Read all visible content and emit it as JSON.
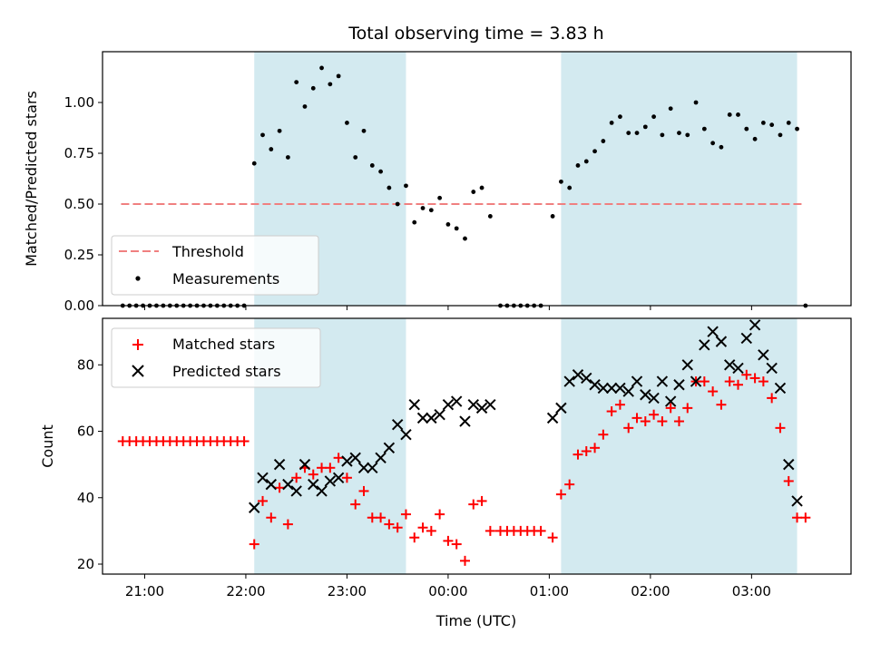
{
  "title": "Total observing time = 3.83 h",
  "colors": {
    "shade": "#a8d5e2",
    "threshold": "#f08080",
    "measurement": "#000000",
    "matched": "#ff0000",
    "predicted": "#000000"
  },
  "chart_data": [
    {
      "type": "scatter",
      "ylabel": "Matched/Predicted stars",
      "xlim": [
        "20:35",
        "03:59"
      ],
      "ylim": [
        0,
        1.25
      ],
      "yticks": [
        "0.00",
        "0.25",
        "0.50",
        "0.75",
        "1.00"
      ],
      "yticks_values": [
        0,
        0.25,
        0.5,
        0.75,
        1.0
      ],
      "shaded_intervals": [
        [
          "22:05",
          "23:35"
        ],
        [
          "01:07",
          "03:27"
        ]
      ],
      "legend_position": "lower-left",
      "legend": [
        "Threshold",
        "Measurements"
      ],
      "threshold": {
        "name": "Threshold",
        "value": 0.5,
        "x_range": [
          "20:46",
          "03:31"
        ]
      },
      "series": [
        {
          "name": "Measurements",
          "marker": "dot",
          "points": [
            [
              "20:47",
              0
            ],
            [
              "20:51",
              0
            ],
            [
              "20:55",
              0
            ],
            [
              "20:59",
              0
            ],
            [
              "21:03",
              0
            ],
            [
              "21:07",
              0
            ],
            [
              "21:11",
              0
            ],
            [
              "21:15",
              0
            ],
            [
              "21:19",
              0
            ],
            [
              "21:23",
              0
            ],
            [
              "21:27",
              0
            ],
            [
              "21:31",
              0
            ],
            [
              "21:35",
              0
            ],
            [
              "21:39",
              0
            ],
            [
              "21:43",
              0
            ],
            [
              "21:47",
              0
            ],
            [
              "21:51",
              0
            ],
            [
              "21:55",
              0
            ],
            [
              "21:59",
              0
            ],
            [
              "22:05",
              0.7
            ],
            [
              "22:10",
              0.84
            ],
            [
              "22:15",
              0.77
            ],
            [
              "22:20",
              0.86
            ],
            [
              "22:25",
              0.73
            ],
            [
              "22:30",
              1.1
            ],
            [
              "22:35",
              0.98
            ],
            [
              "22:40",
              1.07
            ],
            [
              "22:45",
              1.17
            ],
            [
              "22:50",
              1.09
            ],
            [
              "22:55",
              1.13
            ],
            [
              "23:00",
              0.9
            ],
            [
              "23:05",
              0.73
            ],
            [
              "23:10",
              0.86
            ],
            [
              "23:15",
              0.69
            ],
            [
              "23:20",
              0.66
            ],
            [
              "23:25",
              0.58
            ],
            [
              "23:30",
              0.5
            ],
            [
              "23:35",
              0.59
            ],
            [
              "23:40",
              0.41
            ],
            [
              "23:45",
              0.48
            ],
            [
              "23:50",
              0.47
            ],
            [
              "23:55",
              0.53
            ],
            [
              "00:00",
              0.4
            ],
            [
              "00:05",
              0.38
            ],
            [
              "00:10",
              0.33
            ],
            [
              "00:15",
              0.56
            ],
            [
              "00:20",
              0.58
            ],
            [
              "00:25",
              0.44
            ],
            [
              "00:31",
              0
            ],
            [
              "00:35",
              0
            ],
            [
              "00:39",
              0
            ],
            [
              "00:43",
              0
            ],
            [
              "00:47",
              0
            ],
            [
              "00:51",
              0
            ],
            [
              "00:55",
              0
            ],
            [
              "01:02",
              0.44
            ],
            [
              "01:07",
              0.61
            ],
            [
              "01:12",
              0.58
            ],
            [
              "01:17",
              0.69
            ],
            [
              "01:22",
              0.71
            ],
            [
              "01:27",
              0.76
            ],
            [
              "01:32",
              0.81
            ],
            [
              "01:37",
              0.9
            ],
            [
              "01:42",
              0.93
            ],
            [
              "01:47",
              0.85
            ],
            [
              "01:52",
              0.85
            ],
            [
              "01:57",
              0.88
            ],
            [
              "02:02",
              0.93
            ],
            [
              "02:07",
              0.84
            ],
            [
              "02:12",
              0.97
            ],
            [
              "02:17",
              0.85
            ],
            [
              "02:22",
              0.84
            ],
            [
              "02:27",
              1.0
            ],
            [
              "02:32",
              0.87
            ],
            [
              "02:37",
              0.8
            ],
            [
              "02:42",
              0.78
            ],
            [
              "02:47",
              0.94
            ],
            [
              "02:52",
              0.94
            ],
            [
              "02:57",
              0.87
            ],
            [
              "03:02",
              0.82
            ],
            [
              "03:07",
              0.9
            ],
            [
              "03:12",
              0.89
            ],
            [
              "03:17",
              0.84
            ],
            [
              "03:22",
              0.9
            ],
            [
              "03:27",
              0.87
            ],
            [
              "03:32",
              0
            ]
          ]
        }
      ]
    },
    {
      "type": "scatter",
      "xlabel": "Time (UTC)",
      "ylabel": "Count",
      "xlim": [
        "20:35",
        "03:59"
      ],
      "ylim": [
        17,
        94
      ],
      "xticks": [
        "21:00",
        "22:00",
        "23:00",
        "00:00",
        "01:00",
        "02:00",
        "03:00"
      ],
      "yticks": [
        "20",
        "40",
        "60",
        "80"
      ],
      "yticks_values": [
        20,
        40,
        60,
        80
      ],
      "shaded_intervals": [
        [
          "22:05",
          "23:35"
        ],
        [
          "01:07",
          "03:27"
        ]
      ],
      "legend_position": "upper-left",
      "legend": [
        "Matched stars",
        "Predicted stars"
      ],
      "series": [
        {
          "name": "Matched stars",
          "marker": "plus",
          "points": [
            [
              "20:47",
              57
            ],
            [
              "20:51",
              57
            ],
            [
              "20:55",
              57
            ],
            [
              "20:59",
              57
            ],
            [
              "21:03",
              57
            ],
            [
              "21:07",
              57
            ],
            [
              "21:11",
              57
            ],
            [
              "21:15",
              57
            ],
            [
              "21:19",
              57
            ],
            [
              "21:23",
              57
            ],
            [
              "21:27",
              57
            ],
            [
              "21:31",
              57
            ],
            [
              "21:35",
              57
            ],
            [
              "21:39",
              57
            ],
            [
              "21:43",
              57
            ],
            [
              "21:47",
              57
            ],
            [
              "21:51",
              57
            ],
            [
              "21:55",
              57
            ],
            [
              "21:59",
              57
            ],
            [
              "22:05",
              26
            ],
            [
              "22:10",
              39
            ],
            [
              "22:15",
              34
            ],
            [
              "22:20",
              43
            ],
            [
              "22:25",
              32
            ],
            [
              "22:30",
              46
            ],
            [
              "22:35",
              49
            ],
            [
              "22:40",
              47
            ],
            [
              "22:45",
              49
            ],
            [
              "22:50",
              49
            ],
            [
              "22:55",
              52
            ],
            [
              "23:00",
              46
            ],
            [
              "23:05",
              38
            ],
            [
              "23:10",
              42
            ],
            [
              "23:15",
              34
            ],
            [
              "23:20",
              34
            ],
            [
              "23:25",
              32
            ],
            [
              "23:30",
              31
            ],
            [
              "23:35",
              35
            ],
            [
              "23:40",
              28
            ],
            [
              "23:45",
              31
            ],
            [
              "23:50",
              30
            ],
            [
              "23:55",
              35
            ],
            [
              "00:00",
              27
            ],
            [
              "00:05",
              26
            ],
            [
              "00:10",
              21
            ],
            [
              "00:15",
              38
            ],
            [
              "00:20",
              39
            ],
            [
              "00:25",
              30
            ],
            [
              "00:31",
              30
            ],
            [
              "00:35",
              30
            ],
            [
              "00:39",
              30
            ],
            [
              "00:43",
              30
            ],
            [
              "00:47",
              30
            ],
            [
              "00:51",
              30
            ],
            [
              "00:55",
              30
            ],
            [
              "01:02",
              28
            ],
            [
              "01:07",
              41
            ],
            [
              "01:12",
              44
            ],
            [
              "01:17",
              53
            ],
            [
              "01:22",
              54
            ],
            [
              "01:27",
              55
            ],
            [
              "01:32",
              59
            ],
            [
              "01:37",
              66
            ],
            [
              "01:42",
              68
            ],
            [
              "01:47",
              61
            ],
            [
              "01:52",
              64
            ],
            [
              "01:57",
              63
            ],
            [
              "02:02",
              65
            ],
            [
              "02:07",
              63
            ],
            [
              "02:12",
              67
            ],
            [
              "02:17",
              63
            ],
            [
              "02:22",
              67
            ],
            [
              "02:27",
              75
            ],
            [
              "02:32",
              75
            ],
            [
              "02:37",
              72
            ],
            [
              "02:42",
              68
            ],
            [
              "02:47",
              75
            ],
            [
              "02:52",
              74
            ],
            [
              "02:57",
              77
            ],
            [
              "03:02",
              76
            ],
            [
              "03:07",
              75
            ],
            [
              "03:12",
              70
            ],
            [
              "03:17",
              61
            ],
            [
              "03:22",
              45
            ],
            [
              "03:27",
              34
            ],
            [
              "03:32",
              34
            ]
          ]
        },
        {
          "name": "Predicted stars",
          "marker": "x",
          "points": [
            [
              "22:05",
              37
            ],
            [
              "22:10",
              46
            ],
            [
              "22:15",
              44
            ],
            [
              "22:20",
              50
            ],
            [
              "22:25",
              44
            ],
            [
              "22:30",
              42
            ],
            [
              "22:35",
              50
            ],
            [
              "22:40",
              44
            ],
            [
              "22:45",
              42
            ],
            [
              "22:50",
              45
            ],
            [
              "22:55",
              46
            ],
            [
              "23:00",
              51
            ],
            [
              "23:05",
              52
            ],
            [
              "23:10",
              49
            ],
            [
              "23:15",
              49
            ],
            [
              "23:20",
              52
            ],
            [
              "23:25",
              55
            ],
            [
              "23:30",
              62
            ],
            [
              "23:35",
              59
            ],
            [
              "23:40",
              68
            ],
            [
              "23:45",
              64
            ],
            [
              "23:50",
              64
            ],
            [
              "23:55",
              65
            ],
            [
              "00:00",
              68
            ],
            [
              "00:05",
              69
            ],
            [
              "00:10",
              63
            ],
            [
              "00:15",
              68
            ],
            [
              "00:20",
              67
            ],
            [
              "00:25",
              68
            ],
            [
              "01:02",
              64
            ],
            [
              "01:07",
              67
            ],
            [
              "01:12",
              75
            ],
            [
              "01:17",
              77
            ],
            [
              "01:22",
              76
            ],
            [
              "01:27",
              74
            ],
            [
              "01:32",
              73
            ],
            [
              "01:37",
              73
            ],
            [
              "01:42",
              73
            ],
            [
              "01:47",
              72
            ],
            [
              "01:52",
              75
            ],
            [
              "01:57",
              71
            ],
            [
              "02:02",
              70
            ],
            [
              "02:07",
              75
            ],
            [
              "02:12",
              69
            ],
            [
              "02:17",
              74
            ],
            [
              "02:22",
              80
            ],
            [
              "02:27",
              75
            ],
            [
              "02:32",
              86
            ],
            [
              "02:37",
              90
            ],
            [
              "02:42",
              87
            ],
            [
              "02:47",
              80
            ],
            [
              "02:52",
              79
            ],
            [
              "02:57",
              88
            ],
            [
              "03:02",
              92
            ],
            [
              "03:07",
              83
            ],
            [
              "03:12",
              79
            ],
            [
              "03:17",
              73
            ],
            [
              "03:22",
              50
            ],
            [
              "03:27",
              39
            ]
          ]
        }
      ]
    }
  ]
}
